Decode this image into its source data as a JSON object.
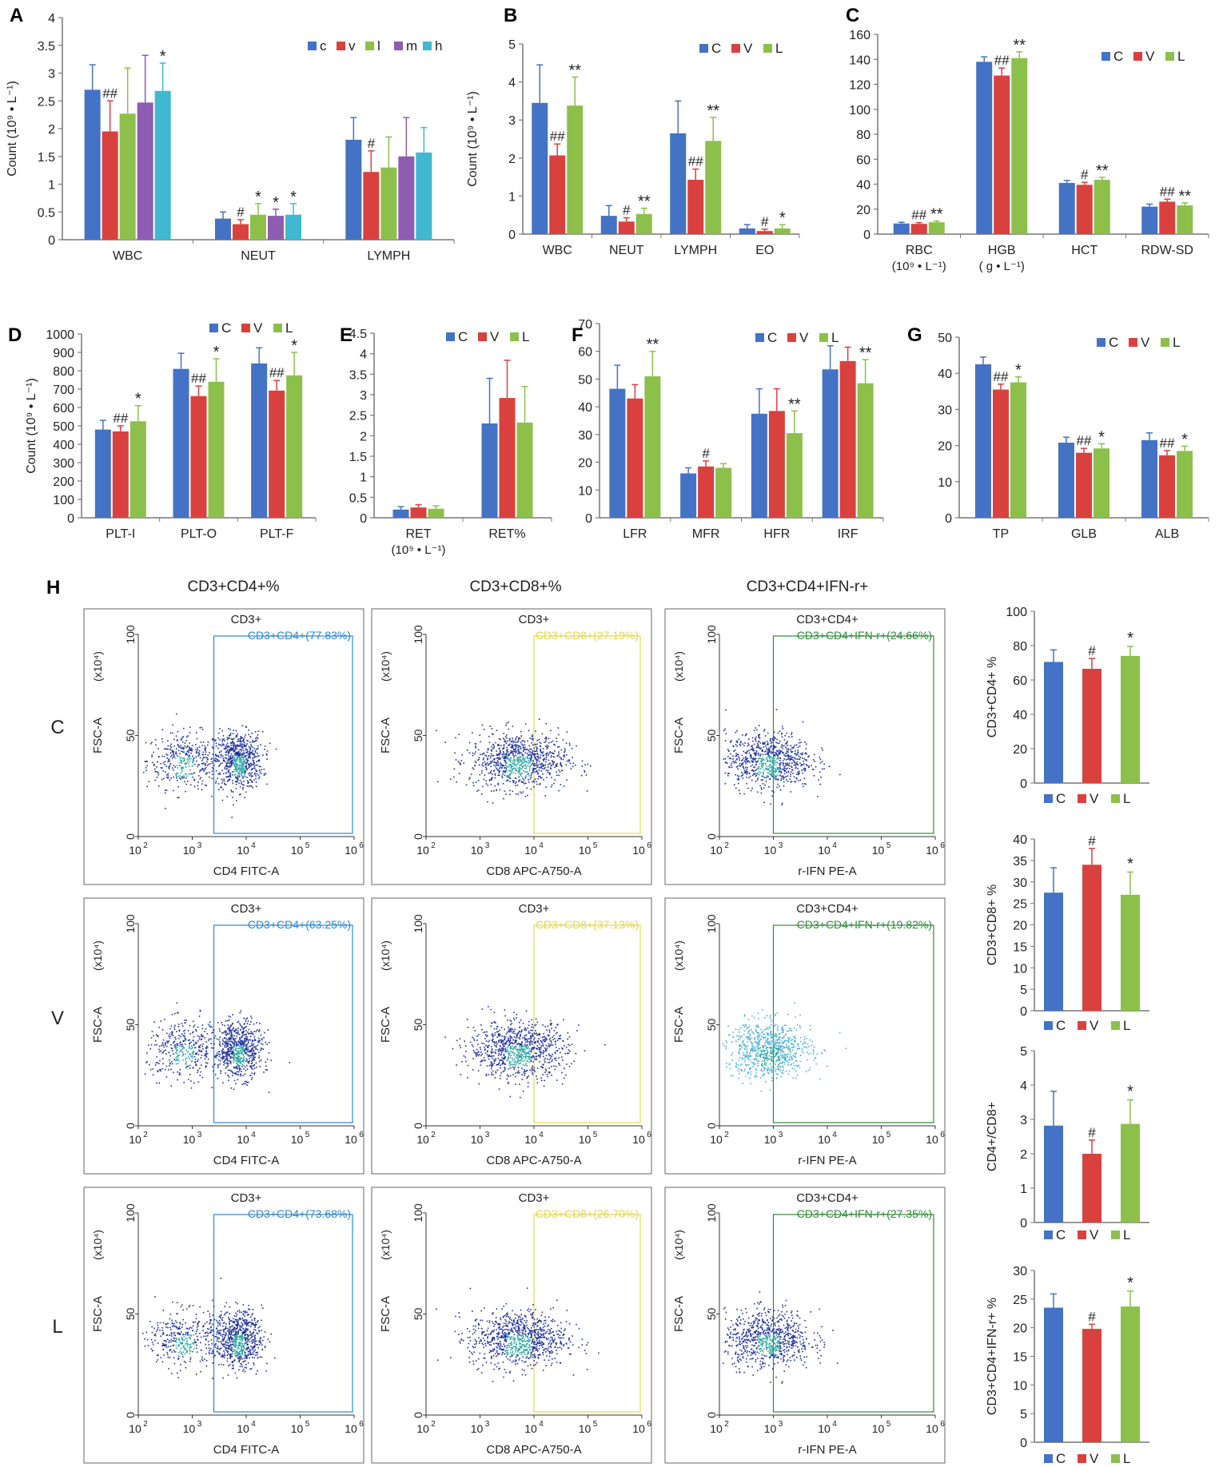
{
  "colors": {
    "C": "#4472C4",
    "V": "#D9413E",
    "L": "#8CC04A",
    "m": "#8E5CB2",
    "h": "#3FB8D0",
    "CD4gate": "#2E86D6",
    "CD8gate": "#E2D84A",
    "IFNgate": "#2E8B36"
  },
  "chart_data": [
    {
      "panel": "A",
      "type": "bar",
      "ylabel": "Count (10⁹ • L⁻¹)",
      "ylim": [
        0,
        4
      ],
      "yticks": [
        "0",
        "0.5",
        "1",
        "1.5",
        "2",
        "2.5",
        "3",
        "3.5",
        "4"
      ],
      "categories": [
        "WBC",
        "NEUT",
        "LYMPH"
      ],
      "legend": [
        "c",
        "v",
        "l",
        "m",
        "h"
      ],
      "series": [
        {
          "name": "c",
          "values": [
            2.7,
            0.38,
            1.8
          ],
          "err": [
            0.45,
            0.12,
            0.4
          ],
          "marks": [
            "",
            "",
            ""
          ]
        },
        {
          "name": "v",
          "values": [
            1.95,
            0.28,
            1.22
          ],
          "err": [
            0.55,
            0.08,
            0.38
          ],
          "marks": [
            "##",
            "#",
            "#"
          ]
        },
        {
          "name": "l",
          "values": [
            2.27,
            0.45,
            1.3
          ],
          "err": [
            0.82,
            0.2,
            0.55
          ],
          "marks": [
            "",
            "*",
            ""
          ]
        },
        {
          "name": "m",
          "values": [
            2.47,
            0.43,
            1.5
          ],
          "err": [
            0.85,
            0.12,
            0.7
          ],
          "marks": [
            "",
            "*",
            ""
          ]
        },
        {
          "name": "h",
          "values": [
            2.68,
            0.45,
            1.57
          ],
          "err": [
            0.5,
            0.2,
            0.45
          ],
          "marks": [
            "*",
            "*",
            ""
          ]
        }
      ]
    },
    {
      "panel": "B",
      "type": "bar",
      "ylabel": "Count (10⁹ • L⁻¹)",
      "ylim": [
        0,
        5
      ],
      "yticks": [
        "0",
        "1",
        "2",
        "3",
        "4",
        "5"
      ],
      "categories": [
        "WBC",
        "NEUT",
        "LYMPH",
        "EO"
      ],
      "legend": [
        "C",
        "V",
        "L"
      ],
      "series": [
        {
          "name": "C",
          "values": [
            3.45,
            0.48,
            2.65,
            0.15
          ],
          "err": [
            1.0,
            0.27,
            0.85,
            0.1
          ],
          "marks": [
            "",
            "",
            "",
            ""
          ]
        },
        {
          "name": "V",
          "values": [
            2.07,
            0.33,
            1.43,
            0.08
          ],
          "err": [
            0.3,
            0.1,
            0.28,
            0.05
          ],
          "marks": [
            "##",
            "#",
            "##",
            "#"
          ]
        },
        {
          "name": "L",
          "values": [
            3.38,
            0.53,
            2.45,
            0.15
          ],
          "err": [
            0.75,
            0.15,
            0.62,
            0.1
          ],
          "marks": [
            "**",
            "**",
            "**",
            "*"
          ]
        }
      ]
    },
    {
      "panel": "C",
      "type": "bar",
      "ylim": [
        0,
        160
      ],
      "yticks": [
        "0",
        "20",
        "40",
        "60",
        "80",
        "100",
        "120",
        "140",
        "160"
      ],
      "categories": [
        "RBC",
        "HGB",
        "HCT",
        "RDW-SD"
      ],
      "category_sublabels": [
        "(10⁹ • L⁻¹)",
        "( g • L⁻¹)",
        "",
        ""
      ],
      "legend": [
        "C",
        "V",
        "L"
      ],
      "series": [
        {
          "name": "C",
          "values": [
            8.5,
            138,
            41,
            22
          ],
          "err": [
            1,
            4,
            2,
            2
          ],
          "marks": [
            "",
            "",
            "",
            ""
          ]
        },
        {
          "name": "V",
          "values": [
            8.2,
            127,
            39.5,
            26
          ],
          "err": [
            1,
            6,
            2,
            2
          ],
          "marks": [
            "##",
            "##",
            "#",
            "##"
          ]
        },
        {
          "name": "L",
          "values": [
            9.5,
            141,
            43.5,
            23
          ],
          "err": [
            1,
            5,
            2,
            2
          ],
          "marks": [
            "**",
            "**",
            "**",
            "**"
          ]
        }
      ]
    },
    {
      "panel": "D",
      "type": "bar",
      "ylabel": "Count (10⁹ • L⁻¹)",
      "ylim": [
        0,
        1000
      ],
      "yticks": [
        "0",
        "100",
        "200",
        "300",
        "400",
        "500",
        "600",
        "700",
        "800",
        "900",
        "1000"
      ],
      "categories": [
        "PLT-I",
        "PLT-O",
        "PLT-F"
      ],
      "legend": [
        "C",
        "V",
        "L"
      ],
      "series": [
        {
          "name": "C",
          "values": [
            480,
            810,
            840
          ],
          "err": [
            50,
            85,
            85
          ],
          "marks": [
            "",
            "",
            ""
          ]
        },
        {
          "name": "V",
          "values": [
            470,
            662,
            692
          ],
          "err": [
            30,
            55,
            55
          ],
          "marks": [
            "##",
            "##",
            "##"
          ]
        },
        {
          "name": "L",
          "values": [
            525,
            740,
            775
          ],
          "err": [
            85,
            125,
            125
          ],
          "marks": [
            "*",
            "*",
            "*"
          ]
        }
      ]
    },
    {
      "panel": "E",
      "type": "bar",
      "ylim": [
        0,
        4.5
      ],
      "yticks": [
        "0",
        "0.5",
        "1",
        "1.5",
        "2",
        "2.5",
        "3",
        "3.5",
        "4",
        "4.5"
      ],
      "categories": [
        "RET",
        "RET%"
      ],
      "category_sublabels": [
        "(10⁹ • L⁻¹)",
        ""
      ],
      "legend": [
        "C",
        "V",
        "L"
      ],
      "series": [
        {
          "name": "C",
          "values": [
            0.2,
            2.3
          ],
          "err": [
            0.07,
            1.1
          ],
          "marks": [
            "",
            ""
          ]
        },
        {
          "name": "V",
          "values": [
            0.25,
            2.92
          ],
          "err": [
            0.07,
            0.92
          ],
          "marks": [
            "",
            ""
          ]
        },
        {
          "name": "L",
          "values": [
            0.22,
            2.32
          ],
          "err": [
            0.07,
            0.88
          ],
          "marks": [
            "",
            ""
          ]
        }
      ]
    },
    {
      "panel": "F",
      "type": "bar",
      "ylim": [
        0,
        70
      ],
      "yticks": [
        "0",
        "10",
        "20",
        "30",
        "40",
        "50",
        "60",
        "70"
      ],
      "categories": [
        "LFR",
        "MFR",
        "HFR",
        "IRF"
      ],
      "legend": [
        "C",
        "V",
        "L"
      ],
      "series": [
        {
          "name": "C",
          "values": [
            46.5,
            16,
            37.5,
            53.5
          ],
          "err": [
            8.5,
            2,
            9,
            8.5
          ],
          "marks": [
            "",
            "",
            "",
            ""
          ]
        },
        {
          "name": "V",
          "values": [
            43,
            18.5,
            38.5,
            56.5
          ],
          "err": [
            5,
            2,
            8,
            5
          ],
          "marks": [
            "",
            "#",
            "",
            ""
          ]
        },
        {
          "name": "L",
          "values": [
            51,
            18,
            30.5,
            48.5
          ],
          "err": [
            9,
            1.5,
            8,
            8.5
          ],
          "marks": [
            "**",
            "",
            "**",
            "**"
          ]
        }
      ]
    },
    {
      "panel": "G",
      "type": "bar",
      "ylim": [
        0,
        50
      ],
      "yticks": [
        "0",
        "10",
        "20",
        "30",
        "40",
        "50"
      ],
      "categories": [
        "TP",
        "GLB",
        "ALB"
      ],
      "legend": [
        "C",
        "V",
        "L"
      ],
      "series": [
        {
          "name": "C",
          "values": [
            42.5,
            20.8,
            21.5
          ],
          "err": [
            2,
            1.5,
            2
          ],
          "marks": [
            "",
            "",
            ""
          ]
        },
        {
          "name": "V",
          "values": [
            35.5,
            18,
            17.3
          ],
          "err": [
            1.5,
            1.2,
            1.3
          ],
          "marks": [
            "##",
            "##",
            "##"
          ]
        },
        {
          "name": "L",
          "values": [
            37.5,
            19.2,
            18.5
          ],
          "err": [
            1.5,
            1.3,
            1.3
          ],
          "marks": [
            "*",
            "*",
            "*"
          ]
        }
      ]
    },
    {
      "panel": "H1",
      "type": "bar",
      "ylabel": "CD3+CD4+ %",
      "ylim": [
        0,
        100
      ],
      "yticks": [
        "0",
        "20",
        "40",
        "60",
        "80",
        "100"
      ],
      "categories": [
        "C",
        "V",
        "L"
      ],
      "legend": [
        "C",
        "V",
        "L"
      ],
      "values": [
        70.5,
        66.5,
        74
      ],
      "err": [
        7,
        6,
        5.5
      ],
      "marks": [
        "",
        "#",
        "*"
      ]
    },
    {
      "panel": "H2",
      "type": "bar",
      "ylabel": "CD3+CD8+ %",
      "ylim": [
        0,
        40
      ],
      "yticks": [
        "0",
        "5",
        "10",
        "15",
        "20",
        "25",
        "30",
        "35",
        "40"
      ],
      "categories": [
        "C",
        "V",
        "L"
      ],
      "legend": [
        "C",
        "V",
        "L"
      ],
      "values": [
        27.5,
        34,
        27
      ],
      "err": [
        5.8,
        3.8,
        5.3
      ],
      "marks": [
        "",
        "#",
        "*"
      ]
    },
    {
      "panel": "H3",
      "type": "bar",
      "ylabel": "CD4+/CD8+",
      "ylim": [
        0,
        5
      ],
      "yticks": [
        "0",
        "1",
        "2",
        "3",
        "4",
        "5"
      ],
      "categories": [
        "C",
        "V",
        "L"
      ],
      "legend": [
        "C",
        "V",
        "L"
      ],
      "values": [
        2.82,
        2.0,
        2.87
      ],
      "err": [
        1.0,
        0.4,
        0.7
      ],
      "marks": [
        "",
        "#",
        "*"
      ]
    },
    {
      "panel": "H4",
      "type": "bar",
      "ylabel": "CD3+CD4+IFN-r+ %",
      "ylim": [
        0,
        30
      ],
      "yticks": [
        "0",
        "5",
        "10",
        "15",
        "20",
        "25",
        "30"
      ],
      "categories": [
        "C",
        "V",
        "L"
      ],
      "legend": [
        "C",
        "V",
        "L"
      ],
      "values": [
        23.5,
        19.8,
        23.7
      ],
      "err": [
        2.4,
        0.8,
        2.7
      ],
      "marks": [
        "",
        "#",
        "*"
      ]
    }
  ],
  "flow": {
    "panel_label": "H",
    "column_titles": [
      "CD3+CD4+%",
      "CD3+CD8+%",
      "CD3+CD4+IFN-r+"
    ],
    "row_labels": [
      "C",
      "V",
      "L"
    ],
    "plot_titles": [
      "CD3+",
      "CD3+",
      "CD3+CD4+"
    ],
    "xlabels": [
      "CD4 FITC-A",
      "CD8 APC-A750-A",
      "r-IFN PE-A"
    ],
    "ylabel": "FSC-A",
    "yunit": "(x10⁴)",
    "yticks": [
      "0",
      "50",
      "100"
    ],
    "xtick_exponents": [
      "2",
      "3",
      "4",
      "5",
      "6"
    ],
    "xtick_base": "10",
    "gates": [
      [
        "CD3+CD4+(77.83%)",
        "CD3+CD8+(27.19%)",
        "CD3+CD4+IFN-r+(24.66%)"
      ],
      [
        "CD3+CD4+(63.25%)",
        "CD3+CD8+(37.13%)",
        "CD3+CD4+IFN-r+(19.82%)"
      ],
      [
        "CD3+CD4+(73.68%)",
        "CD3+CD8+(26.70%)",
        "CD3+CD4+IFN-r+(27.35%)"
      ]
    ],
    "gate_log_x": [
      3.4,
      4.0,
      3.0
    ]
  }
}
